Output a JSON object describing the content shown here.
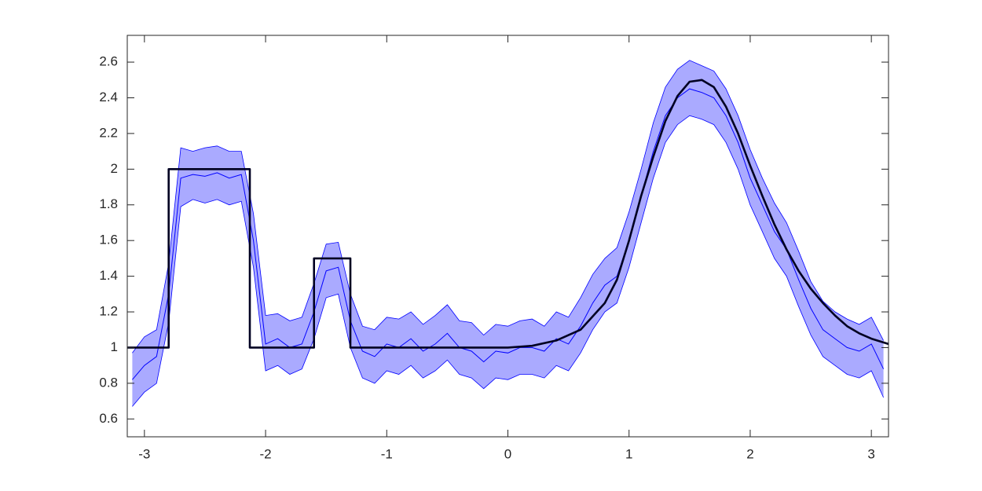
{
  "chart_data": {
    "type": "line",
    "xlim": [
      -3.1416,
      3.1416
    ],
    "ylim": [
      0.5,
      2.75
    ],
    "xticks": [
      -3,
      -2,
      -1,
      0,
      1,
      2,
      3
    ],
    "yticks": [
      0.6,
      0.8,
      1,
      1.2,
      1.4,
      1.6,
      1.8,
      2,
      2.2,
      2.4,
      2.6
    ],
    "x": [
      -3.1,
      -3.0,
      -2.9,
      -2.8,
      -2.7,
      -2.6,
      -2.5,
      -2.4,
      -2.3,
      -2.2,
      -2.1,
      -2.0,
      -1.9,
      -1.8,
      -1.7,
      -1.6,
      -1.5,
      -1.4,
      -1.3,
      -1.2,
      -1.1,
      -1.0,
      -0.9,
      -0.8,
      -0.7,
      -0.6,
      -0.5,
      -0.4,
      -0.3,
      -0.2,
      -0.1,
      0,
      0.1,
      0.2,
      0.3,
      0.4,
      0.5,
      0.6,
      0.7,
      0.8,
      0.9,
      1.0,
      1.1,
      1.2,
      1.3,
      1.4,
      1.5,
      1.6,
      1.7,
      1.8,
      1.9,
      2.0,
      2.1,
      2.2,
      2.3,
      2.4,
      2.5,
      2.6,
      2.7,
      2.8,
      2.9,
      3.0,
      3.1
    ],
    "band": {
      "fill": "#aaaaff",
      "edge": "#0000ff",
      "upper": [
        0.97,
        1.06,
        1.1,
        1.47,
        2.12,
        2.1,
        2.12,
        2.13,
        2.1,
        2.1,
        1.75,
        1.18,
        1.19,
        1.15,
        1.17,
        1.36,
        1.58,
        1.59,
        1.3,
        1.12,
        1.1,
        1.17,
        1.16,
        1.2,
        1.13,
        1.18,
        1.24,
        1.15,
        1.14,
        1.07,
        1.13,
        1.12,
        1.15,
        1.16,
        1.12,
        1.2,
        1.17,
        1.28,
        1.41,
        1.5,
        1.56,
        1.76,
        2.0,
        2.26,
        2.46,
        2.56,
        2.61,
        2.58,
        2.55,
        2.45,
        2.3,
        2.11,
        1.95,
        1.81,
        1.7,
        1.54,
        1.37,
        1.26,
        1.2,
        1.16,
        1.13,
        1.17,
        1.04
      ],
      "lower": [
        0.67,
        0.75,
        0.8,
        1.14,
        1.79,
        1.83,
        1.81,
        1.83,
        1.8,
        1.82,
        1.45,
        0.87,
        0.9,
        0.85,
        0.88,
        1.05,
        1.28,
        1.3,
        1.0,
        0.83,
        0.8,
        0.87,
        0.85,
        0.9,
        0.83,
        0.87,
        0.93,
        0.85,
        0.83,
        0.77,
        0.83,
        0.82,
        0.85,
        0.85,
        0.83,
        0.9,
        0.87,
        0.97,
        1.1,
        1.2,
        1.25,
        1.45,
        1.7,
        1.95,
        2.15,
        2.25,
        2.3,
        2.28,
        2.25,
        2.15,
        2.0,
        1.8,
        1.65,
        1.5,
        1.4,
        1.23,
        1.07,
        0.95,
        0.9,
        0.85,
        0.83,
        0.87,
        0.72
      ]
    },
    "mean": {
      "color": "#0000ff",
      "values": [
        0.82,
        0.9,
        0.95,
        1.3,
        1.95,
        1.97,
        1.96,
        1.98,
        1.95,
        1.97,
        1.6,
        1.02,
        1.05,
        1.0,
        1.02,
        1.2,
        1.43,
        1.45,
        1.15,
        0.98,
        0.95,
        1.02,
        1.0,
        1.05,
        0.98,
        1.02,
        1.08,
        1.0,
        0.98,
        0.92,
        0.98,
        0.97,
        1.0,
        1.0,
        0.98,
        1.05,
        1.02,
        1.12,
        1.25,
        1.35,
        1.4,
        1.6,
        1.85,
        2.1,
        2.3,
        2.4,
        2.45,
        2.43,
        2.4,
        2.3,
        2.15,
        1.95,
        1.8,
        1.65,
        1.55,
        1.38,
        1.22,
        1.1,
        1.05,
        1.0,
        0.98,
        1.02,
        0.88
      ]
    },
    "truth": {
      "color": "#000022",
      "x": [
        -3.1416,
        -2.8,
        -2.8,
        -2.13,
        -2.13,
        -1.6,
        -1.6,
        -1.3,
        -1.3,
        0,
        0.2,
        0.4,
        0.6,
        0.8,
        0.9,
        1.0,
        1.1,
        1.2,
        1.3,
        1.4,
        1.5,
        1.6,
        1.7,
        1.8,
        1.9,
        2.0,
        2.1,
        2.2,
        2.3,
        2.4,
        2.5,
        2.6,
        2.7,
        2.8,
        2.9,
        3.0,
        3.1416
      ],
      "values": [
        1,
        1,
        2,
        2,
        1,
        1,
        1.5,
        1.5,
        1,
        1,
        1.01,
        1.04,
        1.1,
        1.25,
        1.38,
        1.6,
        1.85,
        2.07,
        2.27,
        2.41,
        2.49,
        2.5,
        2.46,
        2.35,
        2.2,
        2.02,
        1.85,
        1.69,
        1.55,
        1.43,
        1.33,
        1.25,
        1.18,
        1.12,
        1.08,
        1.05,
        1.02
      ]
    }
  }
}
